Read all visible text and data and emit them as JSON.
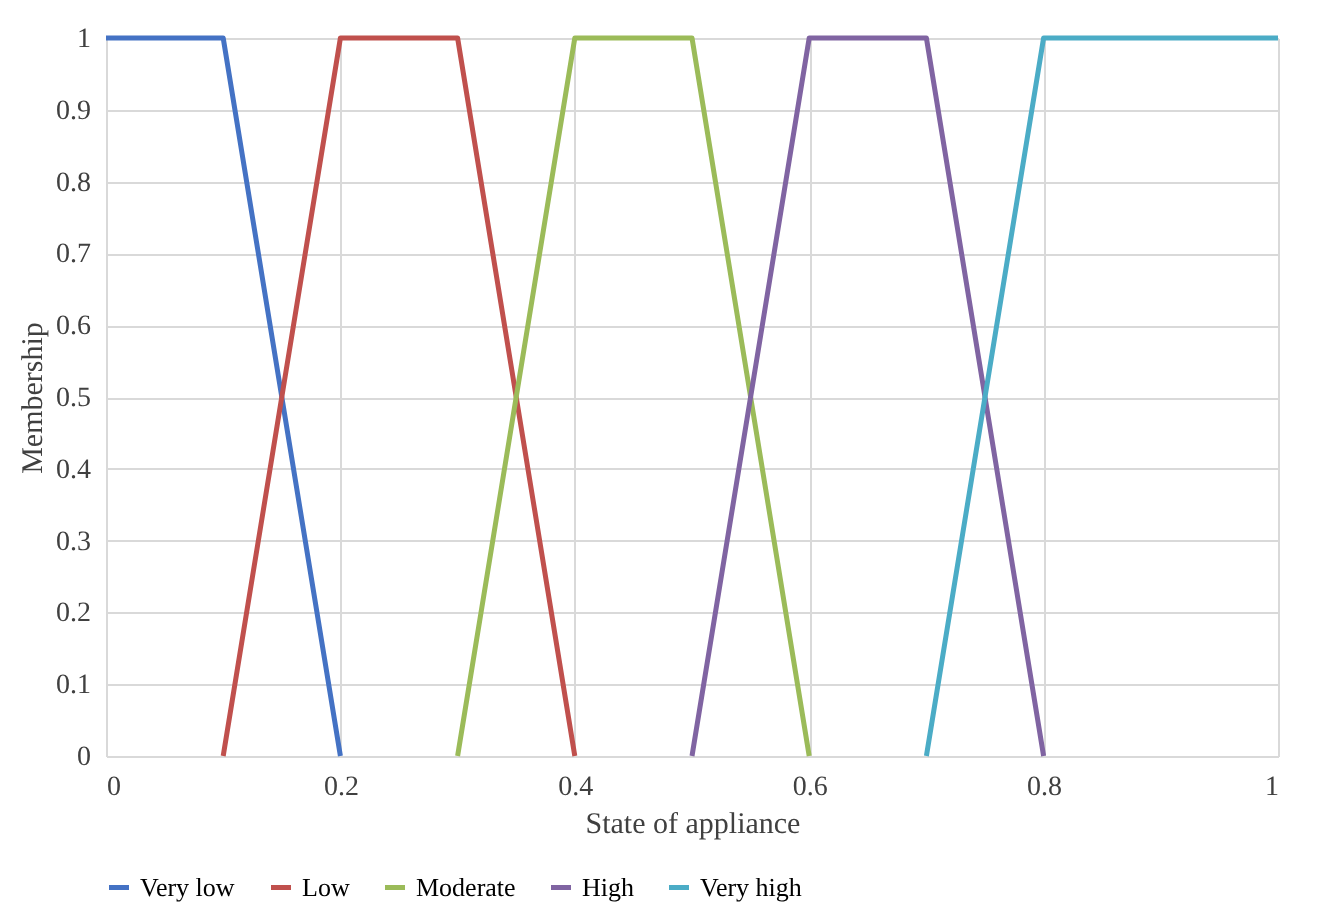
{
  "chart_data": {
    "type": "line",
    "xlabel": "State of appliance",
    "ylabel": "Membership",
    "series": [
      {
        "name": "Very low",
        "color": "#4472c4",
        "x": [
          0,
          0.1,
          0.2
        ],
        "values": [
          1,
          1,
          0
        ]
      },
      {
        "name": "Low",
        "color": "#c0504d",
        "x": [
          0.1,
          0.2,
          0.3,
          0.4
        ],
        "values": [
          0,
          1,
          1,
          0
        ]
      },
      {
        "name": "Moderate",
        "color": "#9bbb59",
        "x": [
          0.3,
          0.4,
          0.5,
          0.6
        ],
        "values": [
          0,
          1,
          1,
          0
        ]
      },
      {
        "name": "High",
        "color": "#8064a2",
        "x": [
          0.5,
          0.6,
          0.7,
          0.8
        ],
        "values": [
          0,
          1,
          1,
          0
        ]
      },
      {
        "name": "Very high",
        "color": "#4bacc6",
        "x": [
          0.7,
          0.8,
          1
        ],
        "values": [
          0,
          1,
          1
        ]
      }
    ],
    "xlim": [
      0,
      1
    ],
    "xticks": [
      0,
      0.2,
      0.4,
      0.6,
      0.8,
      1
    ],
    "ylim": [
      0,
      1
    ],
    "yticks": [
      0,
      0.1,
      0.2,
      0.3,
      0.4,
      0.5,
      0.6,
      0.7,
      0.8,
      0.9,
      1
    ],
    "grid": true,
    "legend": "bottom",
    "marker": "none",
    "line_style": "solid"
  }
}
